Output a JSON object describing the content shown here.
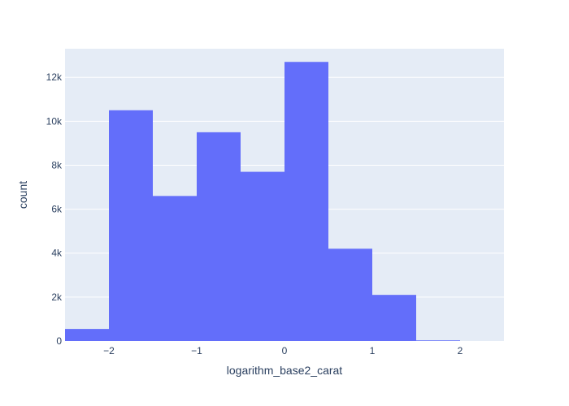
{
  "chart_data": {
    "type": "bar",
    "title": "",
    "xlabel": "logarithm_base2_carat",
    "ylabel": "count",
    "xlim": [
      -2.5,
      2.5
    ],
    "ylim": [
      0,
      13300
    ],
    "grid": true,
    "colors": {
      "plot_bg": "#e5ecf6",
      "bar": "#636efa",
      "grid": "#ffffff",
      "text": "#2a3f5f"
    },
    "x_ticks": [
      {
        "value": -2,
        "label": "−2"
      },
      {
        "value": -1,
        "label": "−1"
      },
      {
        "value": 0,
        "label": "0"
      },
      {
        "value": 1,
        "label": "1"
      },
      {
        "value": 2,
        "label": "2"
      }
    ],
    "y_ticks": [
      {
        "value": 0,
        "label": "0"
      },
      {
        "value": 2000,
        "label": "2k"
      },
      {
        "value": 4000,
        "label": "4k"
      },
      {
        "value": 6000,
        "label": "6k"
      },
      {
        "value": 8000,
        "label": "8k"
      },
      {
        "value": 10000,
        "label": "10k"
      },
      {
        "value": 12000,
        "label": "12k"
      }
    ],
    "bins": [
      {
        "x0": -2.5,
        "x1": -2.0,
        "count": 550
      },
      {
        "x0": -2.0,
        "x1": -1.5,
        "count": 10500
      },
      {
        "x0": -1.5,
        "x1": -1.0,
        "count": 6600
      },
      {
        "x0": -1.0,
        "x1": -0.5,
        "count": 9500
      },
      {
        "x0": -0.5,
        "x1": 0.0,
        "count": 7700
      },
      {
        "x0": 0.0,
        "x1": 0.5,
        "count": 12700
      },
      {
        "x0": 0.5,
        "x1": 1.0,
        "count": 4200
      },
      {
        "x0": 1.0,
        "x1": 1.5,
        "count": 2100
      },
      {
        "x0": 1.5,
        "x1": 2.0,
        "count": 30
      }
    ]
  }
}
